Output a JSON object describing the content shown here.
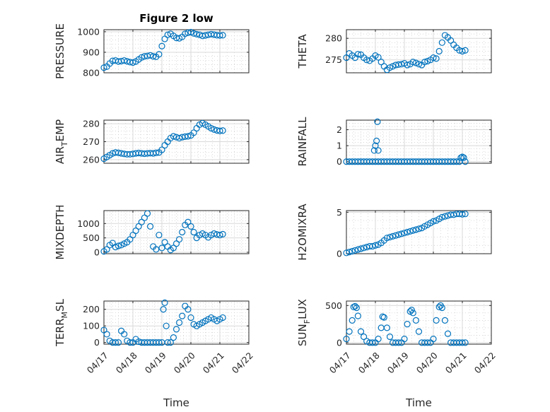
{
  "figure": {
    "title": "Figure 2 low",
    "marker_color": "#0072BD"
  },
  "chart_data": [
    {
      "type": "scatter",
      "title": "Figure 2 low",
      "ylabel": "PRESSURE",
      "ylim": [
        800,
        1010
      ],
      "yticks": [
        800,
        900,
        1000
      ],
      "xlim": [
        0,
        5
      ],
      "xticks": [
        0,
        1,
        2,
        3,
        4,
        5
      ],
      "xticklabels_visible": false,
      "grid": true,
      "x": [
        0,
        0.1,
        0.2,
        0.3,
        0.4,
        0.5,
        0.6,
        0.7,
        0.8,
        0.9,
        1.0,
        1.1,
        1.2,
        1.3,
        1.4,
        1.5,
        1.6,
        1.7,
        1.8,
        1.9,
        2.0,
        2.1,
        2.2,
        2.3,
        2.4,
        2.5,
        2.6,
        2.7,
        2.8,
        2.9,
        3.0,
        3.1,
        3.2,
        3.3,
        3.4,
        3.5,
        3.6,
        3.7,
        3.8,
        3.9,
        4.0,
        4.1
      ],
      "y": [
        825,
        830,
        845,
        858,
        860,
        855,
        857,
        860,
        856,
        852,
        850,
        855,
        865,
        875,
        880,
        882,
        885,
        880,
        878,
        890,
        930,
        965,
        985,
        990,
        980,
        970,
        968,
        975,
        990,
        995,
        998,
        992,
        988,
        985,
        980,
        982,
        985,
        988,
        986,
        983,
        982,
        983
      ]
    },
    {
      "type": "scatter",
      "ylabel": "THETA",
      "ylim": [
        272,
        282
      ],
      "yticks": [
        275,
        280
      ],
      "xlim": [
        0,
        5
      ],
      "xticks": [
        0,
        1,
        2,
        3,
        4,
        5
      ],
      "xticklabels_visible": false,
      "grid": true,
      "x": [
        0,
        0.1,
        0.2,
        0.3,
        0.4,
        0.5,
        0.6,
        0.7,
        0.8,
        0.9,
        1.0,
        1.1,
        1.2,
        1.3,
        1.4,
        1.5,
        1.6,
        1.7,
        1.8,
        1.9,
        2.0,
        2.1,
        2.2,
        2.3,
        2.4,
        2.5,
        2.6,
        2.7,
        2.8,
        2.9,
        3.0,
        3.1,
        3.2,
        3.3,
        3.4,
        3.5,
        3.6,
        3.7,
        3.8,
        3.9,
        4.0,
        4.1
      ],
      "y": [
        275.5,
        276.5,
        276.0,
        275.5,
        276.3,
        276.2,
        275.5,
        275.0,
        274.8,
        275.3,
        276.0,
        275.6,
        274.5,
        273.5,
        272.7,
        273.2,
        273.5,
        273.8,
        273.9,
        274.0,
        274.2,
        273.8,
        274.0,
        274.5,
        274.3,
        274.0,
        273.8,
        274.5,
        274.7,
        275.0,
        275.5,
        275.3,
        277.0,
        279.0,
        280.7,
        280.2,
        279.5,
        278.5,
        277.8,
        277.2,
        277.0,
        277.2
      ]
    },
    {
      "type": "scatter",
      "ylabel": "AIR_TEMP",
      "ylabel_rendered": {
        "base": "AIR",
        "sub": "T",
        "rest": "EMP"
      },
      "ylim": [
        258,
        282
      ],
      "yticks": [
        260,
        270,
        280
      ],
      "xlim": [
        0,
        5
      ],
      "xticks": [
        0,
        1,
        2,
        3,
        4,
        5
      ],
      "xticklabels_visible": false,
      "grid": true,
      "x": [
        0,
        0.1,
        0.2,
        0.3,
        0.4,
        0.5,
        0.6,
        0.7,
        0.8,
        0.9,
        1.0,
        1.1,
        1.2,
        1.3,
        1.4,
        1.5,
        1.6,
        1.7,
        1.8,
        1.9,
        2.0,
        2.1,
        2.2,
        2.3,
        2.4,
        2.5,
        2.6,
        2.7,
        2.8,
        2.9,
        3.0,
        3.1,
        3.2,
        3.3,
        3.4,
        3.5,
        3.6,
        3.7,
        3.8,
        3.9,
        4.0,
        4.1
      ],
      "y": [
        260.5,
        261.5,
        262.5,
        263.5,
        264.0,
        263.8,
        263.5,
        263.2,
        263.0,
        263.0,
        263.2,
        263.5,
        263.7,
        263.5,
        263.3,
        263.5,
        263.6,
        263.5,
        263.8,
        264.0,
        265.5,
        268.0,
        270.0,
        272.0,
        273.0,
        272.5,
        272.0,
        272.5,
        272.8,
        273.0,
        273.5,
        275.0,
        277.5,
        279.5,
        280.3,
        279.5,
        278.5,
        277.5,
        276.8,
        276.3,
        276.0,
        276.2
      ]
    },
    {
      "type": "scatter",
      "ylabel": "RAINFALL",
      "ylim": [
        -0.1,
        2.6
      ],
      "yticks": [
        0,
        1,
        2
      ],
      "xlim": [
        0,
        5
      ],
      "xticks": [
        0,
        1,
        2,
        3,
        4,
        5
      ],
      "xticklabels_visible": false,
      "grid": true,
      "x": [
        0,
        0.1,
        0.2,
        0.3,
        0.4,
        0.5,
        0.6,
        0.7,
        0.8,
        0.9,
        1.0,
        1.1,
        1.2,
        1.3,
        1.4,
        1.5,
        1.6,
        1.7,
        1.8,
        1.9,
        2.0,
        2.1,
        2.2,
        2.3,
        2.4,
        2.5,
        2.6,
        2.7,
        2.8,
        2.9,
        3.0,
        3.1,
        3.2,
        3.3,
        3.4,
        3.5,
        3.6,
        3.7,
        3.8,
        3.9,
        3.95,
        4.0,
        4.05,
        4.1,
        0.96,
        1.0,
        1.04,
        1.07,
        1.1
      ],
      "y": [
        0,
        0,
        0,
        0,
        0,
        0,
        0,
        0,
        0,
        0,
        0,
        0,
        0,
        0,
        0,
        0,
        0,
        0,
        0,
        0,
        0,
        0,
        0,
        0,
        0,
        0,
        0,
        0,
        0,
        0,
        0,
        0,
        0,
        0,
        0,
        0,
        0,
        0,
        0,
        0,
        0.25,
        0.3,
        0.25,
        0,
        0.7,
        1.0,
        1.3,
        2.5,
        0.7
      ]
    },
    {
      "type": "scatter",
      "ylabel": "MIXDEPTH",
      "ylim": [
        -50,
        1450
      ],
      "yticks": [
        0,
        500,
        1000
      ],
      "xlim": [
        0,
        5
      ],
      "xticks": [
        0,
        1,
        2,
        3,
        4,
        5
      ],
      "xticklabels_visible": false,
      "grid": true,
      "x": [
        0,
        0.1,
        0.2,
        0.3,
        0.4,
        0.5,
        0.6,
        0.7,
        0.8,
        0.9,
        1.0,
        1.1,
        1.2,
        1.3,
        1.4,
        1.5,
        1.6,
        1.7,
        1.8,
        1.9,
        2.0,
        2.1,
        2.2,
        2.3,
        2.4,
        2.5,
        2.6,
        2.7,
        2.8,
        2.9,
        3.0,
        3.1,
        3.2,
        3.3,
        3.4,
        3.5,
        3.6,
        3.7,
        3.8,
        3.9,
        4.0,
        4.1
      ],
      "y": [
        30,
        100,
        250,
        320,
        180,
        220,
        250,
        300,
        350,
        450,
        600,
        750,
        900,
        1050,
        1200,
        1350,
        900,
        200,
        100,
        600,
        150,
        350,
        200,
        80,
        150,
        300,
        450,
        700,
        950,
        1050,
        900,
        700,
        500,
        600,
        650,
        600,
        520,
        600,
        650,
        620,
        600,
        630
      ]
    },
    {
      "type": "scatter",
      "ylabel": "H2OMIXRA",
      "ylim": [
        0,
        5.2
      ],
      "yticks": [
        0,
        5
      ],
      "xlim": [
        0,
        5
      ],
      "xticks": [
        0,
        1,
        2,
        3,
        4,
        5
      ],
      "xticklabels_visible": false,
      "grid": true,
      "x": [
        0,
        0.1,
        0.2,
        0.3,
        0.4,
        0.5,
        0.6,
        0.7,
        0.8,
        0.9,
        1.0,
        1.1,
        1.2,
        1.3,
        1.4,
        1.5,
        1.6,
        1.7,
        1.8,
        1.9,
        2.0,
        2.1,
        2.2,
        2.3,
        2.4,
        2.5,
        2.6,
        2.7,
        2.8,
        2.9,
        3.0,
        3.1,
        3.2,
        3.3,
        3.4,
        3.5,
        3.6,
        3.7,
        3.8,
        3.9,
        4.0,
        4.1
      ],
      "y": [
        0.1,
        0.2,
        0.3,
        0.4,
        0.5,
        0.6,
        0.7,
        0.8,
        0.9,
        0.9,
        1.0,
        1.1,
        1.3,
        1.6,
        1.9,
        2.0,
        2.1,
        2.2,
        2.3,
        2.4,
        2.5,
        2.6,
        2.7,
        2.8,
        2.9,
        3.0,
        3.1,
        3.3,
        3.5,
        3.7,
        3.9,
        4.0,
        4.2,
        4.4,
        4.5,
        4.6,
        4.7,
        4.7,
        4.8,
        4.8,
        4.75,
        4.8
      ]
    },
    {
      "type": "scatter",
      "ylabel": "TERR_MSL",
      "ylabel_rendered": {
        "base": "TERR",
        "sub": "M",
        "rest": "SL"
      },
      "ylim": [
        -10,
        250
      ],
      "yticks": [
        0,
        100,
        200
      ],
      "xlim": [
        0,
        5
      ],
      "xticks": [
        0,
        1,
        2,
        3,
        4,
        5
      ],
      "xticklabels": [
        "04/17",
        "04/18",
        "04/19",
        "04/20",
        "04/21",
        "04/22"
      ],
      "xlabel": "Time",
      "grid": true,
      "x": [
        0,
        0.1,
        0.2,
        0.3,
        0.4,
        0.5,
        0.6,
        0.7,
        0.8,
        0.9,
        1.0,
        1.1,
        1.2,
        1.3,
        1.4,
        1.5,
        1.6,
        1.7,
        1.8,
        1.9,
        2.0,
        2.05,
        2.1,
        2.15,
        2.2,
        2.3,
        2.4,
        2.5,
        2.6,
        2.7,
        2.8,
        2.9,
        3.0,
        3.1,
        3.2,
        3.3,
        3.4,
        3.5,
        3.6,
        3.7,
        3.8,
        3.9,
        4.0,
        4.1
      ],
      "y": [
        75,
        50,
        10,
        0,
        0,
        0,
        70,
        50,
        10,
        0,
        0,
        20,
        5,
        0,
        0,
        0,
        0,
        0,
        0,
        0,
        0,
        200,
        240,
        100,
        0,
        0,
        30,
        80,
        120,
        160,
        220,
        200,
        150,
        110,
        100,
        110,
        120,
        130,
        140,
        150,
        140,
        130,
        140,
        150
      ]
    },
    {
      "type": "scatter",
      "ylabel": "SUN_FLUX",
      "ylabel_rendered": {
        "base": "SUN",
        "sub": "F",
        "rest": "LUX"
      },
      "ylim": [
        -20,
        560
      ],
      "yticks": [
        0,
        500
      ],
      "xlim": [
        0,
        5
      ],
      "xticks": [
        0,
        1,
        2,
        3,
        4,
        5
      ],
      "xticklabels": [
        "04/17",
        "04/18",
        "04/19",
        "04/20",
        "04/21",
        "04/22"
      ],
      "xlabel": "Time",
      "grid": true,
      "x": [
        0,
        0.1,
        0.2,
        0.25,
        0.3,
        0.35,
        0.4,
        0.5,
        0.6,
        0.7,
        0.8,
        0.9,
        1.0,
        1.1,
        1.2,
        1.25,
        1.3,
        1.4,
        1.5,
        1.6,
        1.7,
        1.8,
        1.9,
        2.0,
        2.1,
        2.2,
        2.25,
        2.3,
        2.4,
        2.5,
        2.6,
        2.7,
        2.8,
        2.9,
        3.0,
        3.1,
        3.2,
        3.25,
        3.3,
        3.4,
        3.5,
        3.6,
        3.7,
        3.8,
        3.9,
        4.0,
        4.1
      ],
      "y": [
        50,
        150,
        300,
        480,
        490,
        470,
        360,
        150,
        80,
        20,
        0,
        0,
        0,
        50,
        200,
        350,
        340,
        200,
        80,
        0,
        0,
        0,
        0,
        50,
        250,
        420,
        440,
        400,
        300,
        150,
        0,
        0,
        0,
        0,
        50,
        300,
        480,
        500,
        470,
        300,
        120,
        0,
        0,
        0,
        0,
        0,
        0
      ]
    }
  ]
}
